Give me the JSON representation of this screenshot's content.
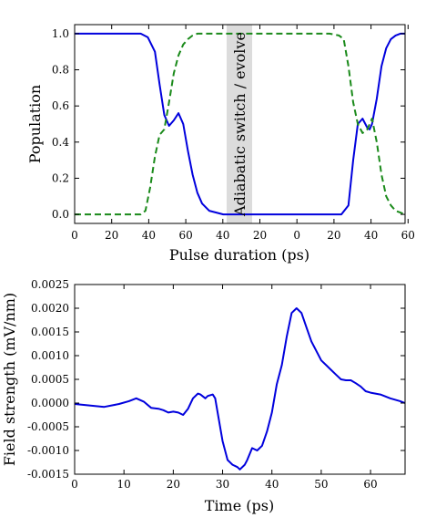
{
  "chart_data": [
    {
      "type": "line",
      "xlabel": "Pulse duration (ps)",
      "ylabel": "Population",
      "annotation": "Adiabatic switch / evolve",
      "ylim": [
        -0.05,
        1.05
      ],
      "yticks": [
        0.0,
        0.2,
        0.4,
        0.6,
        0.8,
        1.0
      ],
      "ytick_labels": [
        "0.0",
        "0.2",
        "0.4",
        "0.6",
        "0.8",
        "1.0"
      ],
      "xtick_labels": [
        "0",
        "20",
        "40",
        "60",
        "40",
        "20",
        "0",
        "20",
        "40",
        "60"
      ],
      "grid": false,
      "series": [
        {
          "style": "solid",
          "color": "#0000dd",
          "x": [
            0,
            10,
            20,
            28,
            31,
            34,
            36,
            38,
            40,
            42,
            44,
            46,
            48,
            50,
            52,
            54,
            57,
            60,
            63,
            66,
            70,
            80,
            90,
            100,
            108,
            113,
            116,
            118,
            120,
            122,
            124,
            125,
            126,
            128,
            130,
            132,
            134,
            136,
            138,
            140
          ],
          "y": [
            1.0,
            1.0,
            1.0,
            1.0,
            0.98,
            0.9,
            0.72,
            0.55,
            0.49,
            0.52,
            0.56,
            0.5,
            0.35,
            0.22,
            0.12,
            0.06,
            0.02,
            0.01,
            0.0,
            0.0,
            0.0,
            0.0,
            0.0,
            0.0,
            0.0,
            0.0,
            0.05,
            0.3,
            0.5,
            0.53,
            0.48,
            0.47,
            0.5,
            0.64,
            0.82,
            0.92,
            0.97,
            0.99,
            1.0,
            1.0
          ]
        },
        {
          "style": "dashed",
          "color": "#1a8a1a",
          "x": [
            0,
            10,
            20,
            28,
            30,
            32,
            34,
            36,
            38,
            40,
            42,
            44,
            46,
            48,
            50,
            52,
            55,
            58,
            62,
            66,
            70,
            80,
            90,
            100,
            108,
            112,
            114,
            116,
            118,
            120,
            122,
            124,
            126,
            128,
            130,
            132,
            134,
            136,
            138,
            140
          ],
          "y": [
            0.0,
            0.0,
            0.0,
            0.0,
            0.02,
            0.15,
            0.32,
            0.44,
            0.47,
            0.62,
            0.78,
            0.88,
            0.94,
            0.97,
            0.99,
            1.0,
            1.0,
            1.0,
            1.0,
            1.0,
            1.0,
            1.0,
            1.0,
            1.0,
            1.0,
            0.99,
            0.97,
            0.82,
            0.62,
            0.5,
            0.45,
            0.47,
            0.53,
            0.4,
            0.22,
            0.1,
            0.05,
            0.02,
            0.01,
            0.0
          ]
        }
      ]
    },
    {
      "type": "line",
      "xlabel": "Time (ps)",
      "ylabel": "Field strength (mV/nm)",
      "xlim": [
        0,
        67
      ],
      "ylim": [
        -0.0015,
        0.0025
      ],
      "xticks": [
        0,
        10,
        20,
        30,
        40,
        50,
        60
      ],
      "xtick_labels": [
        "0",
        "10",
        "20",
        "30",
        "40",
        "50",
        "60"
      ],
      "yticks": [
        -0.0015,
        -0.001,
        -0.0005,
        0.0,
        0.0005,
        0.001,
        0.0015,
        0.002,
        0.0025
      ],
      "ytick_labels": [
        "-0.0015",
        "-0.0010",
        "-0.0005",
        "0.0000",
        "0.0005",
        "0.0010",
        "0.0015",
        "0.0020",
        "0.0025"
      ],
      "grid": false,
      "series": [
        {
          "style": "solid",
          "color": "#0000dd",
          "x": [
            0,
            3,
            6,
            9,
            11,
            12.5,
            14,
            15.5,
            17,
            18,
            19,
            20,
            21,
            22,
            23,
            24,
            25,
            25.5,
            26.5,
            27,
            28,
            28.5,
            29,
            30,
            31,
            32,
            33,
            33.5,
            34.5,
            35,
            36,
            37,
            38,
            39,
            40,
            41,
            42,
            43,
            44,
            45,
            46,
            47,
            48,
            49,
            50,
            51,
            52,
            53,
            54,
            55,
            56,
            57,
            58,
            59,
            60,
            62,
            64,
            66,
            67
          ],
          "y": [
            -2e-05,
            -5e-05,
            -8e-05,
            -2e-05,
            4e-05,
            0.0001,
            3e-05,
            -0.0001,
            -0.00012,
            -0.00015,
            -0.0002,
            -0.00018,
            -0.0002,
            -0.00025,
            -0.00012,
            0.0001,
            0.0002,
            0.00018,
            0.0001,
            0.00015,
            0.00018,
            0.0001,
            -0.0002,
            -0.0008,
            -0.0012,
            -0.0013,
            -0.00135,
            -0.0014,
            -0.0013,
            -0.0012,
            -0.00095,
            -0.001,
            -0.0009,
            -0.0006,
            -0.0002,
            0.0004,
            0.0008,
            0.0014,
            0.0019,
            0.002,
            0.0019,
            0.0016,
            0.0013,
            0.0011,
            0.0009,
            0.0008,
            0.0007,
            0.0006,
            0.0005,
            0.00048,
            0.00048,
            0.00042,
            0.00035,
            0.00025,
            0.00022,
            0.00018,
            0.0001,
            4e-05,
            0.0
          ]
        }
      ]
    }
  ]
}
